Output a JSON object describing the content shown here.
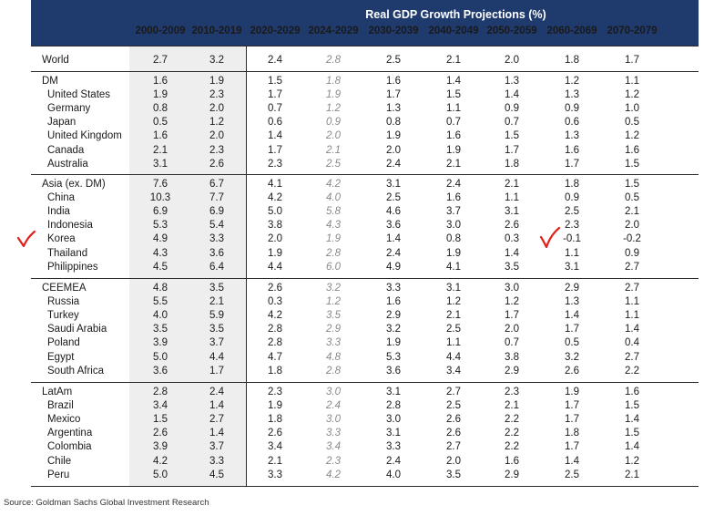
{
  "header": {
    "title": "Real GDP Growth Projections (%)",
    "periods": [
      "2000-2009",
      "2010-2019",
      "2020-2029",
      "2024-2029",
      "2030-2039",
      "2040-2049",
      "2050-2059",
      "2060-2069",
      "2070-2079"
    ]
  },
  "groups": [
    {
      "rows": [
        {
          "label": "World",
          "values": [
            "2.7",
            "3.2",
            "2.4",
            "2.8",
            "2.5",
            "2.1",
            "2.0",
            "1.8",
            "1.7"
          ]
        }
      ]
    },
    {
      "rows": [
        {
          "label": "DM",
          "values": [
            "1.6",
            "1.9",
            "1.5",
            "1.8",
            "1.6",
            "1.4",
            "1.3",
            "1.2",
            "1.1"
          ]
        },
        {
          "label": "United States",
          "values": [
            "1.9",
            "2.3",
            "1.7",
            "1.9",
            "1.7",
            "1.5",
            "1.4",
            "1.3",
            "1.2"
          ]
        },
        {
          "label": "Germany",
          "values": [
            "0.8",
            "2.0",
            "0.7",
            "1.2",
            "1.3",
            "1.1",
            "0.9",
            "0.9",
            "1.0"
          ]
        },
        {
          "label": "Japan",
          "values": [
            "0.5",
            "1.2",
            "0.6",
            "0.9",
            "0.8",
            "0.7",
            "0.7",
            "0.6",
            "0.5"
          ]
        },
        {
          "label": "United Kingdom",
          "values": [
            "1.6",
            "2.0",
            "1.4",
            "2.0",
            "1.9",
            "1.6",
            "1.5",
            "1.3",
            "1.2"
          ]
        },
        {
          "label": "Canada",
          "values": [
            "2.1",
            "2.3",
            "1.7",
            "2.1",
            "2.0",
            "1.9",
            "1.7",
            "1.6",
            "1.6"
          ]
        },
        {
          "label": "Australia",
          "values": [
            "3.1",
            "2.6",
            "2.3",
            "2.5",
            "2.4",
            "2.1",
            "1.8",
            "1.7",
            "1.5"
          ]
        }
      ]
    },
    {
      "rows": [
        {
          "label": "Asia (ex. DM)",
          "values": [
            "7.6",
            "6.7",
            "4.1",
            "4.2",
            "3.1",
            "2.4",
            "2.1",
            "1.8",
            "1.5"
          ]
        },
        {
          "label": "China",
          "values": [
            "10.3",
            "7.7",
            "4.2",
            "4.0",
            "2.5",
            "1.6",
            "1.1",
            "0.9",
            "0.5"
          ]
        },
        {
          "label": "India",
          "values": [
            "6.9",
            "6.9",
            "5.0",
            "5.8",
            "4.6",
            "3.7",
            "3.1",
            "2.5",
            "2.1"
          ]
        },
        {
          "label": "Indonesia",
          "values": [
            "5.3",
            "5.4",
            "3.8",
            "4.3",
            "3.6",
            "3.0",
            "2.6",
            "2.3",
            "2.0"
          ]
        },
        {
          "label": "Korea",
          "values": [
            "4.9",
            "3.3",
            "2.0",
            "1.9",
            "1.4",
            "0.8",
            "0.3",
            "-0.1",
            "-0.2"
          ]
        },
        {
          "label": "Thailand",
          "values": [
            "4.3",
            "3.6",
            "1.9",
            "2.8",
            "2.4",
            "1.9",
            "1.4",
            "1.1",
            "0.9"
          ]
        },
        {
          "label": "Philippines",
          "values": [
            "4.5",
            "6.4",
            "4.4",
            "6.0",
            "4.9",
            "4.1",
            "3.5",
            "3.1",
            "2.7"
          ]
        }
      ]
    },
    {
      "rows": [
        {
          "label": "CEEMEA",
          "values": [
            "4.8",
            "3.5",
            "2.6",
            "3.2",
            "3.3",
            "3.1",
            "3.0",
            "2.9",
            "2.7"
          ]
        },
        {
          "label": "Russia",
          "values": [
            "5.5",
            "2.1",
            "0.3",
            "1.2",
            "1.6",
            "1.2",
            "1.2",
            "1.3",
            "1.1"
          ]
        },
        {
          "label": "Turkey",
          "values": [
            "4.0",
            "5.9",
            "4.2",
            "3.5",
            "2.9",
            "2.1",
            "1.7",
            "1.4",
            "1.1"
          ]
        },
        {
          "label": "Saudi Arabia",
          "values": [
            "3.5",
            "3.5",
            "2.8",
            "2.9",
            "3.2",
            "2.5",
            "2.0",
            "1.7",
            "1.4"
          ]
        },
        {
          "label": "Poland",
          "values": [
            "3.9",
            "3.7",
            "2.8",
            "3.3",
            "1.9",
            "1.1",
            "0.7",
            "0.5",
            "0.4"
          ]
        },
        {
          "label": "Egypt",
          "values": [
            "5.0",
            "4.4",
            "4.7",
            "4.8",
            "5.3",
            "4.4",
            "3.8",
            "3.2",
            "2.7"
          ]
        },
        {
          "label": "South Africa",
          "values": [
            "3.6",
            "1.7",
            "1.8",
            "2.8",
            "3.6",
            "3.4",
            "2.9",
            "2.6",
            "2.2"
          ]
        }
      ]
    },
    {
      "rows": [
        {
          "label": "LatAm",
          "values": [
            "2.8",
            "2.4",
            "2.3",
            "3.0",
            "3.1",
            "2.7",
            "2.3",
            "1.9",
            "1.6"
          ]
        },
        {
          "label": "Brazil",
          "values": [
            "3.4",
            "1.4",
            "1.9",
            "2.4",
            "2.8",
            "2.5",
            "2.1",
            "1.7",
            "1.5"
          ]
        },
        {
          "label": "Mexico",
          "values": [
            "1.5",
            "2.7",
            "1.8",
            "3.0",
            "3.0",
            "2.6",
            "2.2",
            "1.7",
            "1.4"
          ]
        },
        {
          "label": "Argentina",
          "values": [
            "2.6",
            "1.4",
            "2.6",
            "3.3",
            "3.1",
            "2.6",
            "2.2",
            "1.8",
            "1.5"
          ]
        },
        {
          "label": "Colombia",
          "values": [
            "3.9",
            "3.7",
            "3.4",
            "3.4",
            "3.3",
            "2.7",
            "2.2",
            "1.7",
            "1.4"
          ]
        },
        {
          "label": "Chile",
          "values": [
            "4.2",
            "3.3",
            "2.1",
            "2.3",
            "2.4",
            "2.0",
            "1.6",
            "1.4",
            "1.2"
          ]
        },
        {
          "label": "Peru",
          "values": [
            "5.0",
            "4.5",
            "3.3",
            "4.2",
            "4.0",
            "3.5",
            "2.9",
            "2.5",
            "2.1"
          ]
        }
      ]
    }
  ],
  "source": "Source: Goldman Sachs Global Investment Research",
  "annotations": {
    "color": "#e0201b",
    "icon": "handwritten-checkmark"
  }
}
